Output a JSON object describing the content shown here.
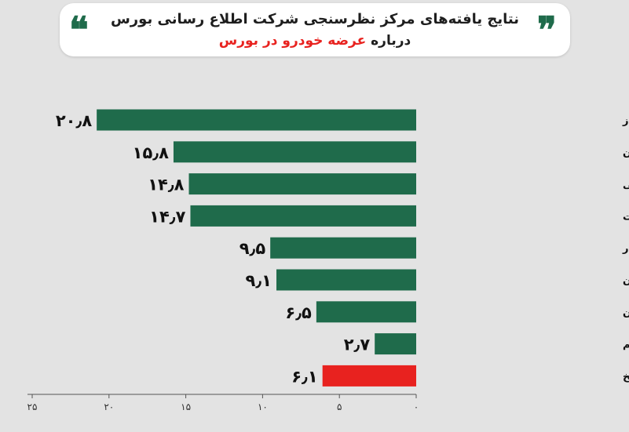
{
  "header": {
    "title_line1": "نتایج یافته‌های مرکز نظرسنجی شرکت اطلاع رسانی بورس",
    "title_line2_prefix": "درباره",
    "title_line2_highlight": "عرضه خودرو در بورس",
    "quote_left": "❝",
    "quote_right": "❞",
    "highlight_color": "#e8221f"
  },
  "chart_data": {
    "type": "bar",
    "orientation": "horizontal",
    "categories": [
      "حذف قرعه کشی خودرو از طرف خودروساز",
      "عدم دپوی تولیدات توسط دلالان",
      "شفافیت معاملاتی",
      "جلوگیری از رانت",
      "عرضه خودرو با قیمت پایین تر از بازار",
      "مشخص بودن خریداران",
      "افزایش منافع سهامداران",
      "با عرضه خودرو در بورس کالا مخالفم",
      "نظری ندارم/بی پاسخ"
    ],
    "values": [
      20.8,
      15.8,
      14.8,
      14.7,
      9.5,
      9.1,
      6.5,
      2.7,
      6.1
    ],
    "value_labels": [
      "۲۰٫۸",
      "۱۵٫۸",
      "۱۴٫۸",
      "۱۴٫۷",
      "۹٫۵",
      "۹٫۱",
      "۶٫۵",
      "۲٫۷",
      "۶٫۱"
    ],
    "xlim": [
      0,
      25
    ],
    "x_ticks": [
      0,
      5,
      10,
      15,
      20,
      25
    ],
    "x_tick_labels": [
      "۰",
      "۵",
      "۱۰",
      "۱۵",
      "۲۰",
      "۲۵"
    ],
    "x_direction": "right-to-left",
    "colors": [
      "#1f6b4b",
      "#1f6b4b",
      "#1f6b4b",
      "#1f6b4b",
      "#1f6b4b",
      "#1f6b4b",
      "#1f6b4b",
      "#1f6b4b",
      "#e8221f"
    ],
    "grid": false
  }
}
